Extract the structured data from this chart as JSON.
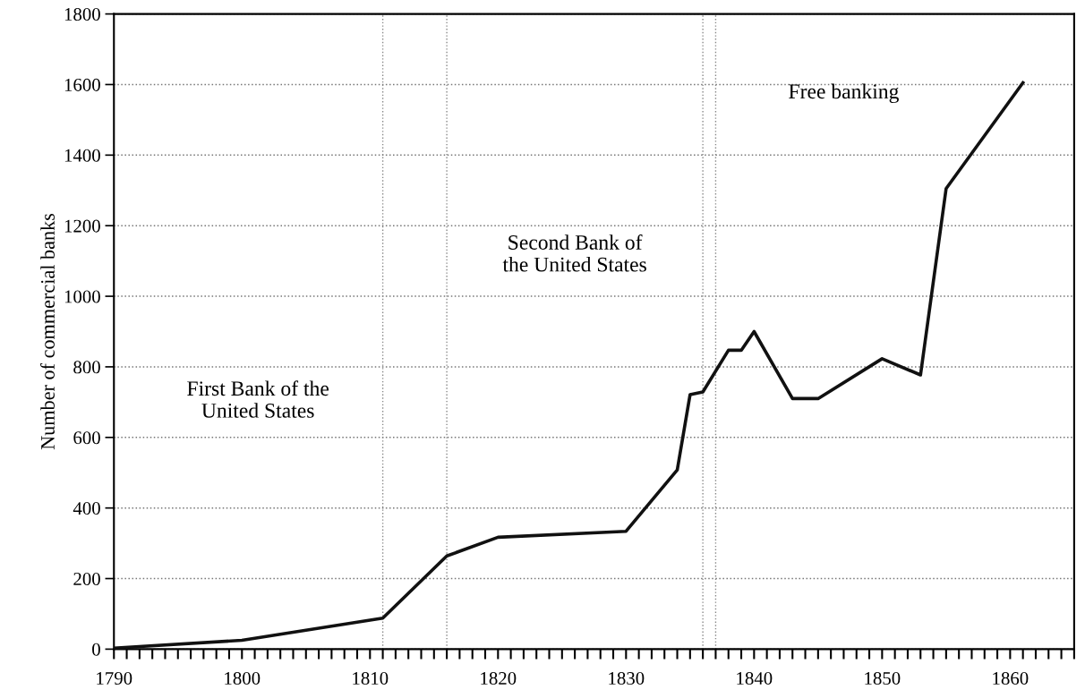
{
  "chart_data": {
    "type": "line",
    "ylabel": "Number of commercial banks",
    "x": [
      1790,
      1800,
      1811,
      1816,
      1820,
      1830,
      1834,
      1835,
      1836,
      1838,
      1839,
      1840,
      1843,
      1845,
      1850,
      1853,
      1855,
      1861
    ],
    "series": [
      {
        "color": "#111111",
        "values": [
          3,
          25,
          88,
          264,
          317,
          334,
          508,
          721,
          729,
          847,
          847,
          900,
          710,
          710,
          823,
          777,
          1305,
          1605
        ]
      }
    ],
    "xlim": [
      1790,
      1865
    ],
    "ylim": [
      0,
      1800
    ],
    "xticks": [
      1790,
      {
        "value": 1791,
        "label": null
      },
      {
        "value": 1792,
        "label": null
      },
      {
        "value": 1793,
        "label": null
      },
      {
        "value": 1794,
        "label": null
      },
      {
        "value": 1795,
        "label": null
      },
      {
        "value": 1796,
        "label": null
      },
      {
        "value": 1797,
        "label": null
      },
      {
        "value": 1798,
        "label": null
      },
      {
        "value": 1799,
        "label": null
      },
      1800,
      {
        "value": 1801,
        "label": null
      },
      {
        "value": 1802,
        "label": null
      },
      {
        "value": 1803,
        "label": null
      },
      {
        "value": 1804,
        "label": null
      },
      {
        "value": 1805,
        "label": null
      },
      {
        "value": 1806,
        "label": null
      },
      {
        "value": 1807,
        "label": null
      },
      {
        "value": 1808,
        "label": null
      },
      {
        "value": 1809,
        "label": null
      },
      1810,
      {
        "value": 1811,
        "label": null
      },
      {
        "value": 1812,
        "label": null
      },
      {
        "value": 1813,
        "label": null
      },
      {
        "value": 1814,
        "label": null
      },
      {
        "value": 1815,
        "label": null
      },
      {
        "value": 1816,
        "label": null
      },
      {
        "value": 1817,
        "label": null
      },
      {
        "value": 1818,
        "label": null
      },
      {
        "value": 1819,
        "label": null
      },
      1820,
      {
        "value": 1821,
        "label": null
      },
      {
        "value": 1822,
        "label": null
      },
      {
        "value": 1823,
        "label": null
      },
      {
        "value": 1824,
        "label": null
      },
      {
        "value": 1825,
        "label": null
      },
      {
        "value": 1826,
        "label": null
      },
      {
        "value": 1827,
        "label": null
      },
      {
        "value": 1828,
        "label": null
      },
      {
        "value": 1829,
        "label": null
      },
      1830,
      {
        "value": 1831,
        "label": null
      },
      {
        "value": 1832,
        "label": null
      },
      {
        "value": 1833,
        "label": null
      },
      {
        "value": 1834,
        "label": null
      },
      {
        "value": 1835,
        "label": null
      },
      {
        "value": 1836,
        "label": null
      },
      {
        "value": 1837,
        "label": null
      },
      {
        "value": 1838,
        "label": null
      },
      {
        "value": 1839,
        "label": null
      },
      1840,
      {
        "value": 1841,
        "label": null
      },
      {
        "value": 1842,
        "label": null
      },
      {
        "value": 1843,
        "label": null
      },
      {
        "value": 1844,
        "label": null
      },
      {
        "value": 1845,
        "label": null
      },
      {
        "value": 1846,
        "label": null
      },
      {
        "value": 1847,
        "label": null
      },
      {
        "value": 1848,
        "label": null
      },
      {
        "value": 1849,
        "label": null
      },
      1850,
      {
        "value": 1851,
        "label": null
      },
      {
        "value": 1852,
        "label": null
      },
      {
        "value": 1853,
        "label": null
      },
      {
        "value": 1854,
        "label": null
      },
      {
        "value": 1855,
        "label": null
      },
      {
        "value": 1856,
        "label": null
      },
      {
        "value": 1857,
        "label": null
      },
      {
        "value": 1858,
        "label": null
      },
      {
        "value": 1859,
        "label": null
      },
      1860,
      {
        "value": 1861,
        "label": null
      },
      {
        "value": 1862,
        "label": null
      },
      {
        "value": 1863,
        "label": null
      },
      {
        "value": 1864,
        "label": null
      },
      {
        "value": 1865,
        "label": null
      }
    ],
    "yticks": [
      0,
      200,
      400,
      600,
      800,
      1000,
      1200,
      1400,
      1600,
      1800
    ],
    "grid": "y",
    "line_style": "solid",
    "marker": "none",
    "legend": false,
    "ref_lines": [
      {
        "axis": "x",
        "value": 1811,
        "color": "#888888",
        "line_style": "dotted"
      },
      {
        "axis": "x",
        "value": 1816,
        "color": "#888888",
        "line_style": "dotted"
      },
      {
        "axis": "x",
        "value": 1836,
        "color": "#888888",
        "line_style": "dotted"
      },
      {
        "axis": "x",
        "value": 1837,
        "color": "#888888",
        "line_style": "dotted"
      }
    ],
    "annotations": [
      "First Bank of the\nUnited States",
      "Second Bank of\nthe United States",
      "Free banking"
    ]
  }
}
